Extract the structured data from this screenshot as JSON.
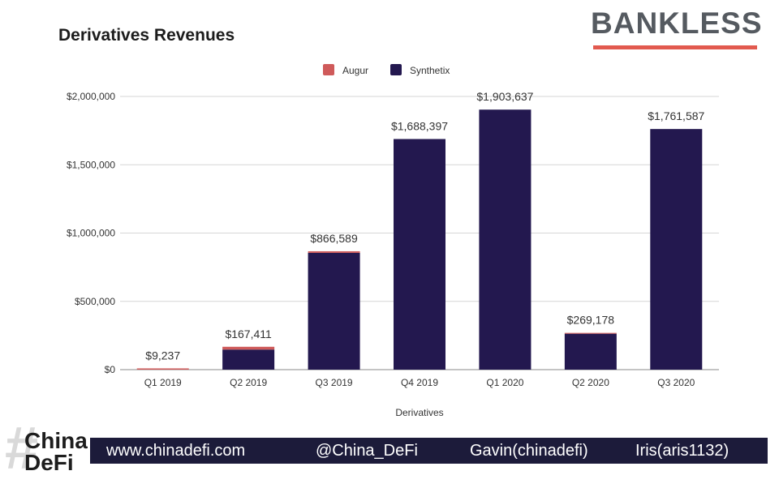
{
  "page": {
    "title": "Derivatives Revenues",
    "brand": "BANKLESS"
  },
  "footer": {
    "logo_line1": "China",
    "logo_line2": "DeFi",
    "website": "www.chinadefi.com",
    "handle": "@China_DeFi",
    "author1": "Gavin(chinadefi)",
    "author2": "Iris(aris1132)"
  },
  "colors": {
    "augur": "#cf5a5a",
    "synthetix": "#23184f",
    "brand_accent": "#e25a4f",
    "footer_bg": "#1c1b3a"
  },
  "chart_data": {
    "type": "bar",
    "stacked": true,
    "title": "Derivatives Revenues",
    "xlabel": "Derivatives",
    "ylabel": "",
    "ylim": [
      0,
      2000000
    ],
    "yticks": [
      0,
      500000,
      1000000,
      1500000,
      2000000
    ],
    "ytick_labels": [
      "$0",
      "$500,000",
      "$1,000,000",
      "$1,500,000",
      "$2,000,000"
    ],
    "grid": true,
    "legend": "top-center",
    "categories": [
      "Q1 2019",
      "Q2 2019",
      "Q3 2019",
      "Q4 2019",
      "Q1 2020",
      "Q2 2020",
      "Q3 2020"
    ],
    "series": [
      {
        "name": "Synthetix",
        "color": "#23184f",
        "values": [
          0,
          147000,
          855000,
          1688397,
          1903637,
          263000,
          1761587
        ]
      },
      {
        "name": "Augur",
        "color": "#cf5a5a",
        "values": [
          9237,
          20411,
          11589,
          0,
          0,
          6178,
          0
        ]
      }
    ],
    "legend_order": [
      "Augur",
      "Synthetix"
    ],
    "totals": [
      9237,
      167411,
      866589,
      1688397,
      1903637,
      269178,
      1761587
    ],
    "total_labels": [
      "$9,237",
      "$167,411",
      "$866,589",
      "$1,688,397",
      "$1,903,637",
      "$269,178",
      "$1,761,587"
    ]
  }
}
